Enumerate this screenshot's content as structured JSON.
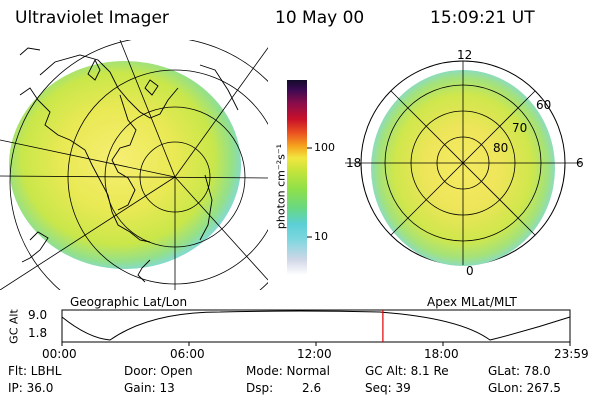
{
  "header": {
    "title": "Ultraviolet Imager",
    "date": "10 May 00",
    "time": "15:09:21 UT"
  },
  "colorbar": {
    "label": "photon cm⁻²s⁻¹",
    "ticks": [
      "100",
      "10"
    ]
  },
  "left_panel": {
    "caption": "Geographic Lat/Lon"
  },
  "right_panel": {
    "caption": "Apex MLat/MLT",
    "mlt_labels": [
      "12",
      "18",
      "6",
      "0"
    ],
    "lat_labels": [
      "60",
      "70",
      "80"
    ]
  },
  "timeline": {
    "ylabel": "GC Alt",
    "y_ticks": [
      "9.0",
      "1.8"
    ],
    "x_ticks": [
      "00:00",
      "06:00",
      "12:00",
      "18:00",
      "23:59"
    ],
    "current_time_hours": 15.16
  },
  "status": {
    "flt": "Flt: LBHL",
    "ip": "IP: 36.0",
    "door": "Door: Open",
    "gain": "Gain: 13",
    "mode": "Mode: Normal",
    "dsp": "Dsp:",
    "dsp_value": "2.6",
    "gc_alt": "GC Alt: 8.1 Re",
    "seq": "Seq: 39",
    "glat": "GLat:  78.0",
    "glon": "GLon: 267.5"
  },
  "colors": {
    "accent_marker": "#e00000",
    "aurora_outer": "#9be39b",
    "aurora_mid": "#d6ec4a",
    "aurora_core": "#f2e35a",
    "edge_cyan": "#79d9e6"
  }
}
